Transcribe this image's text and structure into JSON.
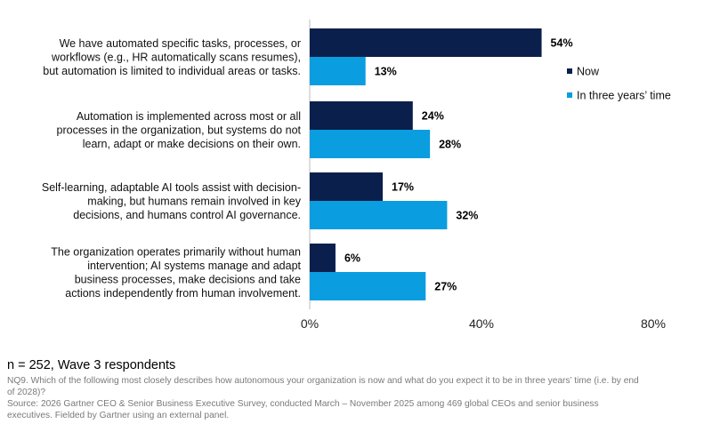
{
  "chart_data": {
    "type": "bar",
    "orientation": "horizontal",
    "categories": [
      [
        "We have automated specific tasks, processes, or",
        "workflows (e.g., HR automatically scans resumes),",
        "but automation is limited to individual areas or tasks."
      ],
      [
        "Automation is implemented across most or all",
        "processes in the organization, but systems do not",
        "learn, adapt or make decisions on their own."
      ],
      [
        "Self-learning, adaptable AI tools assist with decision-",
        "making, but humans remain involved in key",
        "decisions, and humans control AI governance."
      ],
      [
        "The organization operates primarily without human",
        "intervention; AI systems manage and adapt",
        "business processes, make decisions and take",
        "actions independently from human involvement."
      ]
    ],
    "series": [
      {
        "name": "Now",
        "color": "#0b1f4d",
        "values": [
          54,
          24,
          17,
          6
        ],
        "labels": [
          "54%",
          "24%",
          "17%",
          "6%"
        ]
      },
      {
        "name": "In three years’ time",
        "color": "#0a9de0",
        "values": [
          13,
          28,
          32,
          27
        ],
        "labels": [
          "13%",
          "28%",
          "32%",
          "27%"
        ]
      }
    ],
    "xlim": [
      0,
      80
    ],
    "ticks": [
      0,
      40,
      80
    ],
    "tick_labels": [
      "0%",
      "40%",
      "80%"
    ],
    "grid": false,
    "legend_position": "right"
  },
  "footer": {
    "sample": "n = 252, Wave 3 respondents",
    "question": "NQ9. Which of the following most closely describes how autonomous your organization is now and what do you expect it to be in three years’ time (i.e. by end of 2028)?",
    "source": "Source: 2026 Gartner CEO & Senior Business Executive Survey, conducted March – November 2025 among 469 global CEOs and senior business executives. Fielded by Gartner using an external panel."
  }
}
